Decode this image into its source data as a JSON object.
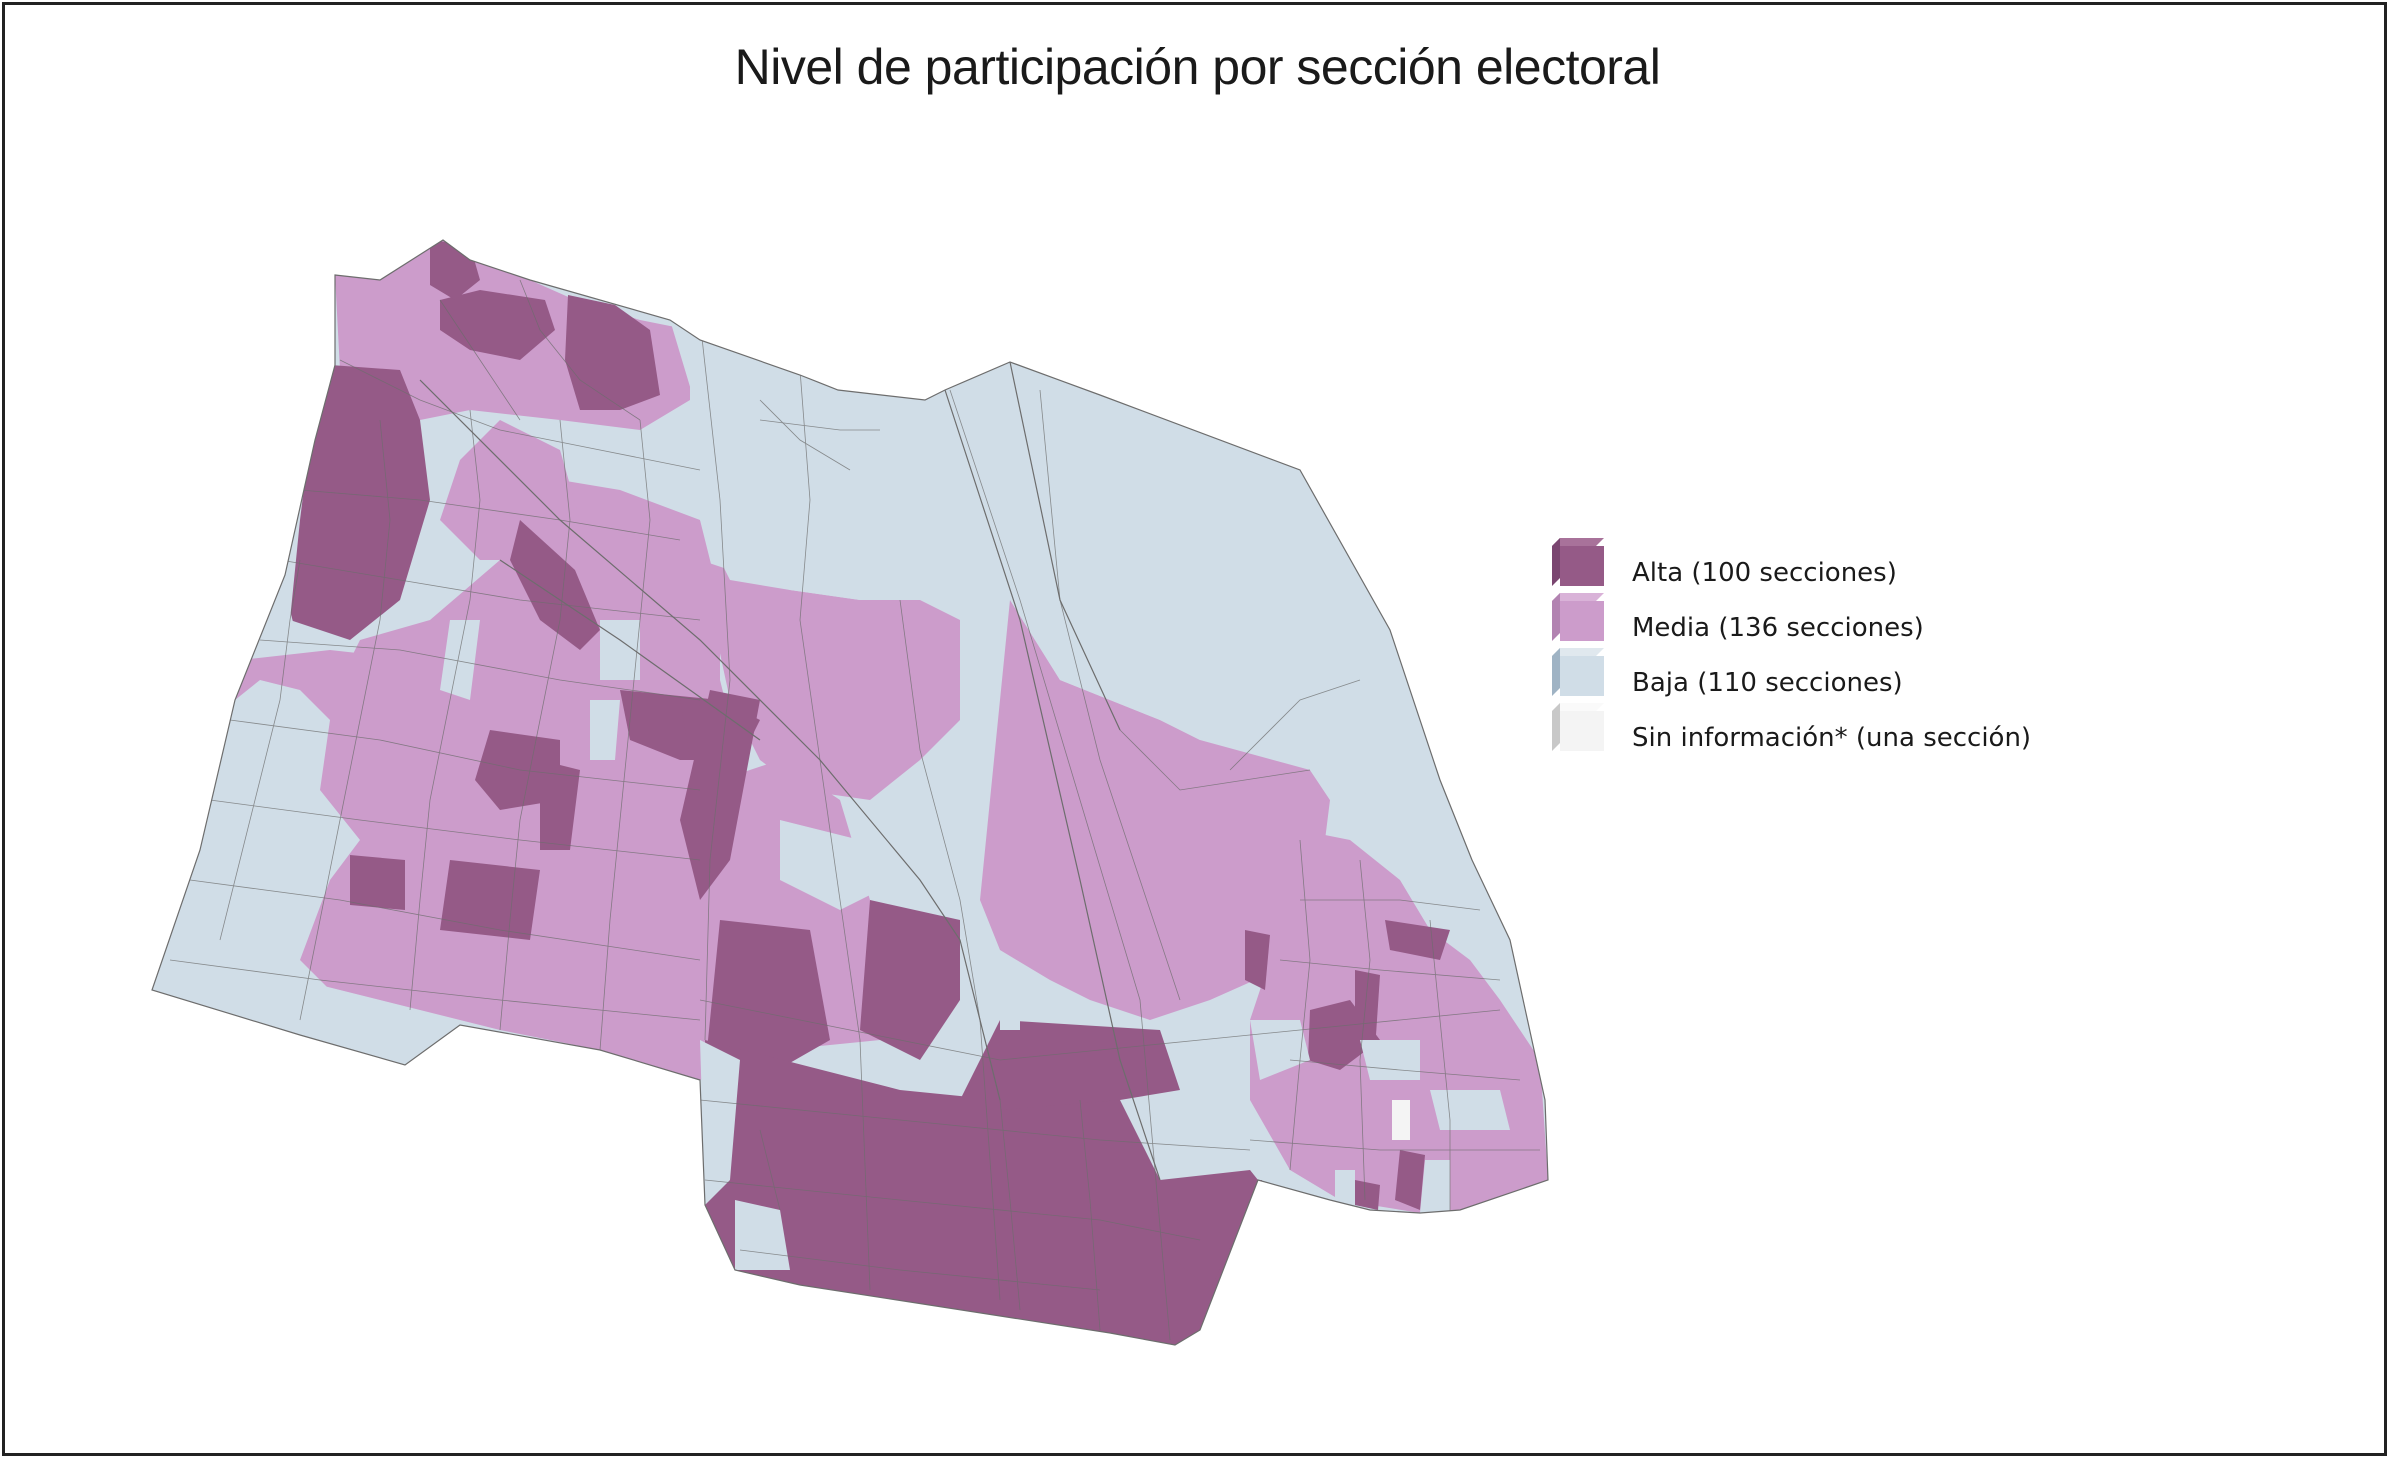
{
  "map": {
    "title": "Nivel de participación por sección electoral",
    "colors": {
      "alta": "#955a87",
      "media": "#cc9ccb",
      "baja": "#d0dde7",
      "sin_informacion": "#f4f4f4",
      "border": "#6d6d6d"
    }
  },
  "legend": {
    "items": [
      {
        "label": "Alta (100 secciones)",
        "color": "#955a87",
        "edge": "#7a4570",
        "top": "#a8729a"
      },
      {
        "label": "Media (136 secciones)",
        "color": "#cc9ccb",
        "edge": "#b283b1",
        "top": "#d9b2d8"
      },
      {
        "label": "Baja (110 secciones)",
        "color": "#d0dde7",
        "edge": "#9fb3c4",
        "top": "#e0e8ee"
      },
      {
        "label": "Sin información* (una sección)",
        "color": "#f4f4f4",
        "edge": "#c8c8c8",
        "top": "#fafafa"
      }
    ]
  }
}
